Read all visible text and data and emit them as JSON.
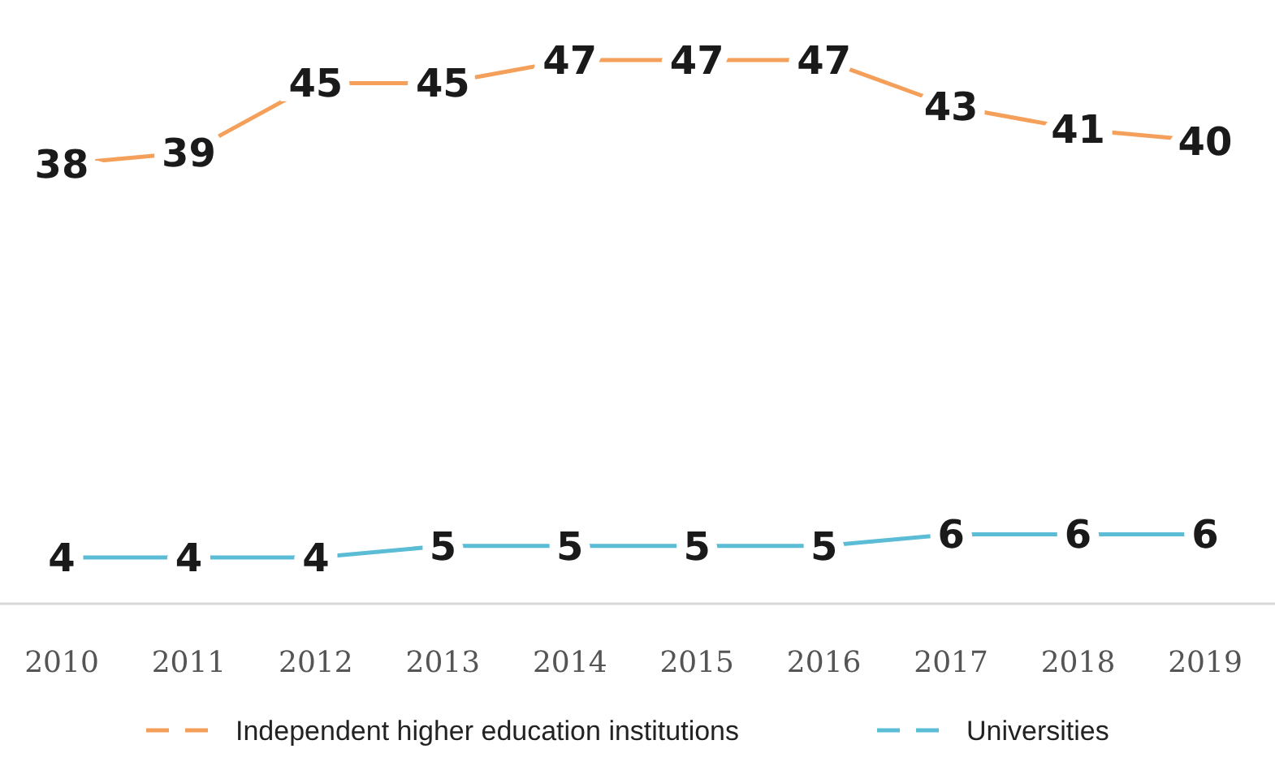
{
  "chart_data": {
    "type": "line",
    "categories": [
      "2010",
      "2011",
      "2012",
      "2013",
      "2014",
      "2015",
      "2016",
      "2017",
      "2018",
      "2019"
    ],
    "series": [
      {
        "name": "Independent higher education institutions",
        "color": "#f5a05a",
        "values": [
          38,
          39,
          45,
          45,
          47,
          47,
          47,
          43,
          41,
          40
        ]
      },
      {
        "name": "Universities",
        "color": "#5bbcd6",
        "values": [
          4,
          4,
          4,
          5,
          5,
          5,
          5,
          6,
          6,
          6
        ]
      }
    ],
    "data_labels": true,
    "legend": "bottom",
    "tick_labels": "x"
  }
}
